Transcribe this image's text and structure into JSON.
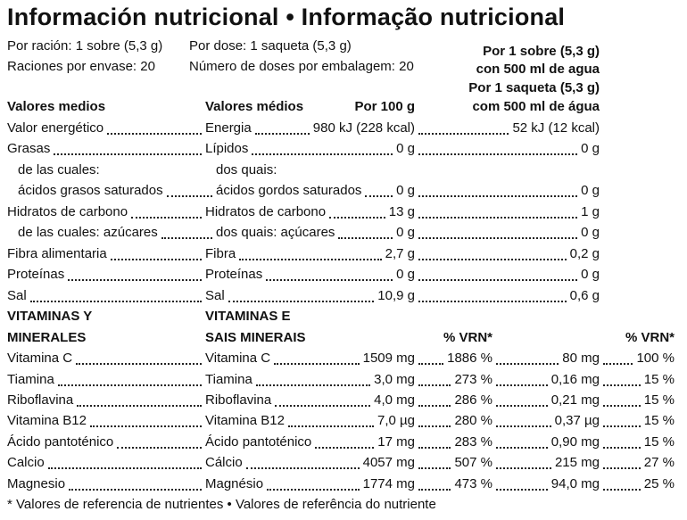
{
  "title": "Información nutricional • Informação nutricional",
  "header": {
    "es_serving": "Por ración: 1 sobre (5,3 g)",
    "es_servings_per_pack": "Raciones por envase: 20",
    "pt_serving": "Por dose: 1 saqueta (5,3 g)",
    "pt_servings_per_pack": "Número de doses por embalagem: 20",
    "col_es_line1": "Por 1 sobre (5,3 g)",
    "col_es_line2": "con 500 ml de agua",
    "col_pt_line1": "Por 1 saqueta (5,3 g)",
    "col_pt_line2": "com 500 ml de água"
  },
  "columns": {
    "es_avg": "Valores medios",
    "pt_avg": "Valores médios",
    "per100": "Por 100 g"
  },
  "nutrients": [
    {
      "es": "Valor energético",
      "pt": "Energia",
      "per100": "980 kJ (228 kcal)",
      "perServing": "52 kJ (12 kcal)"
    },
    {
      "es": "Grasas",
      "pt": "Lípidos",
      "per100": "0 g",
      "perServing": "0 g"
    },
    {
      "es": "de las cuales:",
      "pt": "dos quais:",
      "per100": "",
      "perServing": ""
    },
    {
      "es": "ácidos grasos saturados",
      "pt": "ácidos gordos saturados",
      "per100": "0 g",
      "perServing": "0 g"
    },
    {
      "es": "Hidratos de carbono",
      "pt": "Hidratos de carbono",
      "per100": "13 g",
      "perServing": "1 g"
    },
    {
      "es": "de las cuales: azúcares",
      "pt": "dos quais: açúcares",
      "per100": "0 g",
      "perServing": "0 g"
    },
    {
      "es": "Fibra alimentaria",
      "pt": "Fibra",
      "per100": "2,7 g",
      "perServing": "0,2 g"
    },
    {
      "es": "Proteínas",
      "pt": "Proteínas",
      "per100": "0 g",
      "perServing": "0 g"
    },
    {
      "es": "Sal",
      "pt": "Sal",
      "per100": "10,9 g",
      "perServing": "0,6 g"
    }
  ],
  "vitamins_header": {
    "es_line1": "VITAMINAS Y",
    "es_line2": "MINERALES",
    "pt_line1": "VITAMINAS E",
    "pt_line2": "SAIS MINERAIS",
    "vrn": "% VRN*",
    "vrn2": "% VRN*"
  },
  "vitamins": [
    {
      "es": "Vitamina C",
      "pt": "Vitamina C",
      "per100": "1509 mg",
      "vrn100": "1886 %",
      "perServing": "80 mg",
      "vrnServing": "100 %"
    },
    {
      "es": "Tiamina",
      "pt": "Tiamina",
      "per100": "3,0 mg",
      "vrn100": "273 %",
      "perServing": "0,16 mg",
      "vrnServing": "15 %"
    },
    {
      "es": "Riboflavina",
      "pt": "Riboflavina",
      "per100": "4,0 mg",
      "vrn100": "286 %",
      "perServing": "0,21 mg",
      "vrnServing": "15 %"
    },
    {
      "es": "Vitamina B12",
      "pt": "Vitamina B12",
      "per100": "7,0 µg",
      "vrn100": "280 %",
      "perServing": "0,37 µg",
      "vrnServing": "15 %"
    },
    {
      "es": "Ácido pantoténico",
      "pt": "Ácido pantoténico",
      "per100": "17 mg",
      "vrn100": "283 %",
      "perServing": "0,90 mg",
      "vrnServing": "15 %"
    },
    {
      "es": "Calcio",
      "pt": "Cálcio",
      "per100": "4057 mg",
      "vrn100": "507 %",
      "perServing": "215 mg",
      "vrnServing": "27 %"
    },
    {
      "es": "Magnesio",
      "pt": "Magnésio",
      "per100": "1774 mg",
      "vrn100": "473 %",
      "perServing": "94,0 mg",
      "vrnServing": "25 %"
    }
  ],
  "footnote": "* Valores de referencia de nutrientes • Valores de referência do nutriente"
}
